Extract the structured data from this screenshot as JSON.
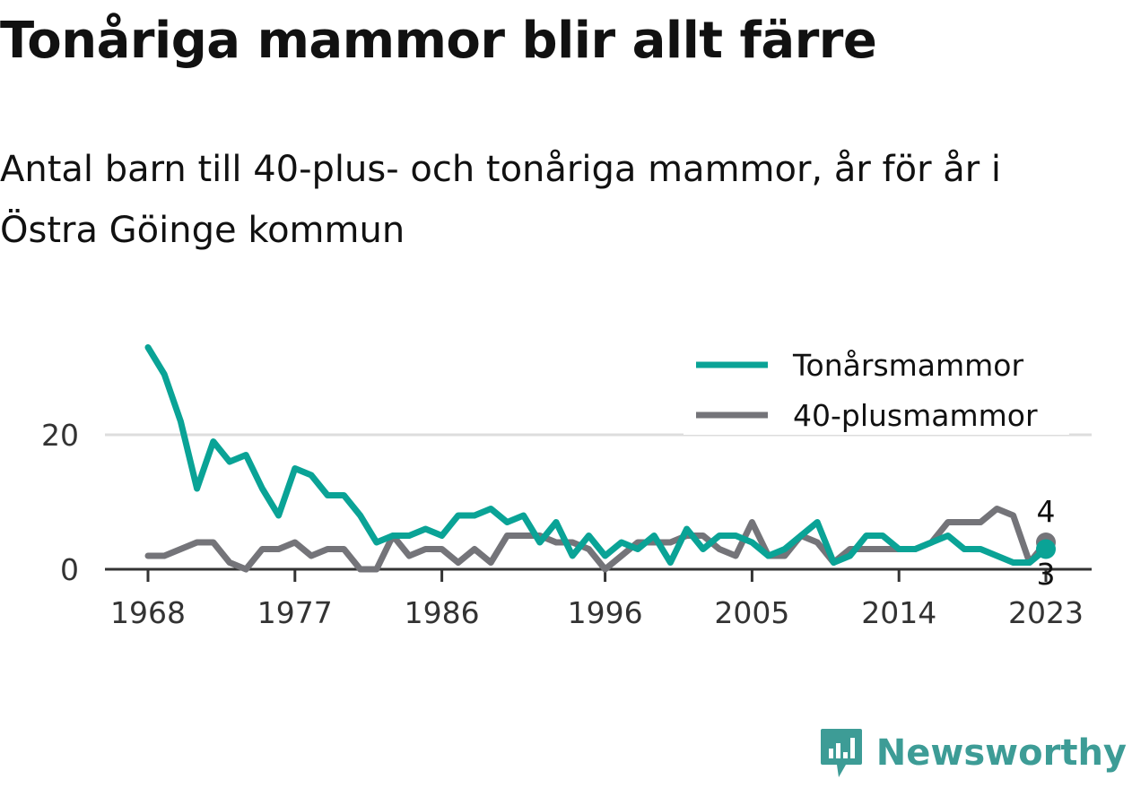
{
  "header": {
    "title": "Tonåriga mammor blir allt färre",
    "subtitle": "Antal barn till 40-plus- och tonåriga mammor, år för år i Östra Göinge kommun"
  },
  "brand": {
    "name": "Newsworthy",
    "icon": "newsworthy-logo-icon",
    "color": "#3d9c96"
  },
  "chart_data": {
    "type": "line",
    "title": "Tonåriga mammor blir allt färre",
    "subtitle": "Antal barn till 40-plus- och tonåriga mammor, år för år i Östra Göinge kommun",
    "xlabel": "",
    "ylabel": "",
    "x": [
      1968,
      1969,
      1970,
      1971,
      1972,
      1973,
      1974,
      1975,
      1976,
      1977,
      1978,
      1979,
      1980,
      1981,
      1982,
      1983,
      1984,
      1985,
      1986,
      1987,
      1988,
      1989,
      1990,
      1991,
      1992,
      1993,
      1994,
      1995,
      1996,
      1997,
      1998,
      1999,
      2000,
      2001,
      2002,
      2003,
      2004,
      2005,
      2006,
      2007,
      2008,
      2009,
      2010,
      2011,
      2012,
      2013,
      2014,
      2015,
      2016,
      2017,
      2018,
      2019,
      2020,
      2021,
      2022,
      2023
    ],
    "x_ticks": [
      "1968",
      "1977",
      "1986",
      "1996",
      "2005",
      "2014",
      "2023"
    ],
    "y_ticks": [
      "0",
      "20"
    ],
    "ylim": [
      0,
      33
    ],
    "xlim": [
      1967,
      2026
    ],
    "grid": "horizontal",
    "legend_position": "top-right",
    "series": [
      {
        "name": "Tonårsmammor",
        "color": "#0aa396",
        "values": [
          33,
          29,
          22,
          12,
          19,
          16,
          17,
          12,
          8,
          15,
          14,
          11,
          11,
          8,
          4,
          5,
          5,
          6,
          5,
          8,
          8,
          9,
          7,
          8,
          4,
          7,
          2,
          5,
          2,
          4,
          3,
          5,
          1,
          6,
          3,
          5,
          5,
          4,
          2,
          3,
          5,
          7,
          1,
          2,
          5,
          5,
          3,
          3,
          4,
          5,
          3,
          3,
          2,
          1,
          1,
          3
        ],
        "end_label": "3"
      },
      {
        "name": "40-plusmammor",
        "color": "#747479",
        "values": [
          2,
          2,
          3,
          4,
          4,
          1,
          0,
          3,
          3,
          4,
          2,
          3,
          3,
          0,
          0,
          5,
          2,
          3,
          3,
          1,
          3,
          1,
          5,
          5,
          5,
          4,
          4,
          3,
          0,
          2,
          4,
          4,
          4,
          5,
          5,
          3,
          2,
          7,
          2,
          2,
          5,
          4,
          1,
          3,
          3,
          3,
          3,
          3,
          4,
          7,
          7,
          7,
          9,
          8,
          1,
          4
        ],
        "end_label": "4"
      }
    ]
  }
}
